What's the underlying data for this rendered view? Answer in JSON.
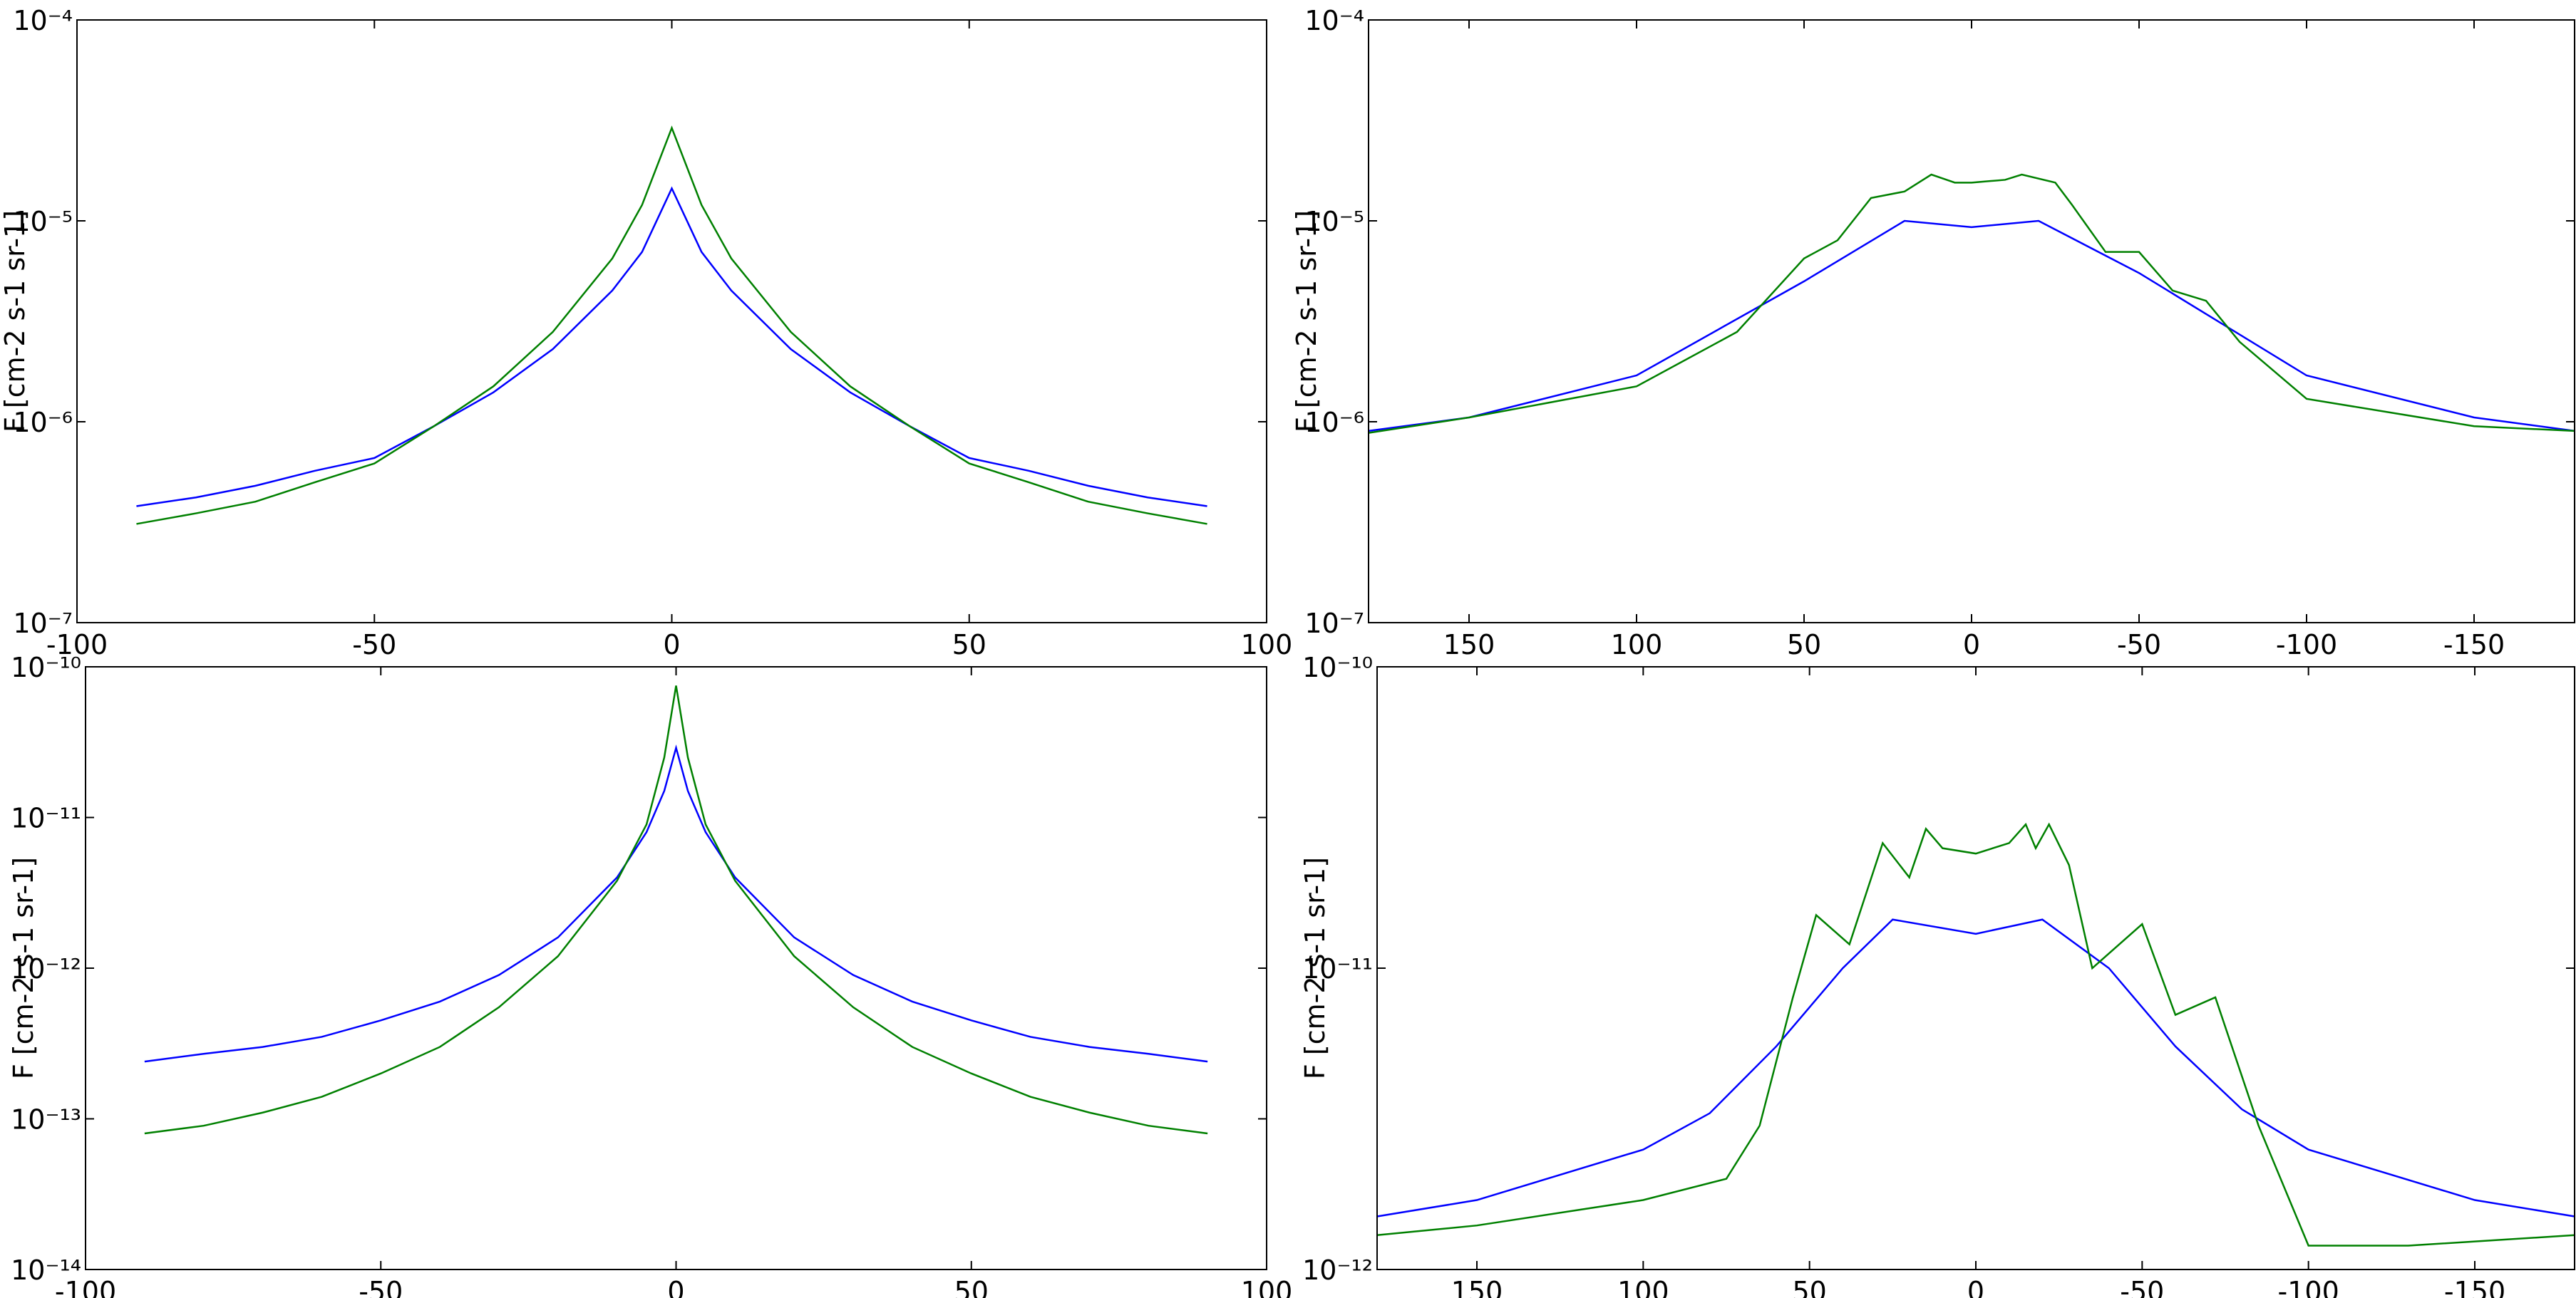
{
  "chart_data": [
    {
      "type": "line",
      "ylabel": "F [cm-2 s-1 sr-1]",
      "log_y": true,
      "xlim": [
        -100,
        100
      ],
      "ylim": [
        1e-07,
        0.0001
      ],
      "xticks": [
        -100,
        -50,
        0,
        50,
        100
      ],
      "yticks": [
        {
          "value": 1e-07,
          "label": "10⁻⁷"
        },
        {
          "value": 1e-06,
          "label": "10⁻⁶"
        },
        {
          "value": 1e-05,
          "label": "10⁻⁵"
        },
        {
          "value": 0.0001,
          "label": "10⁻⁴"
        }
      ],
      "series": [
        {
          "color": "#0000ff",
          "x": [
            -90,
            -80,
            -70,
            -60,
            -50,
            -40,
            -30,
            -20,
            -10,
            -5,
            0,
            5,
            10,
            20,
            30,
            40,
            50,
            60,
            70,
            80,
            90
          ],
          "values": [
            3.8e-07,
            4.2e-07,
            4.8e-07,
            5.7e-07,
            6.6e-07,
            9.5e-07,
            1.4e-06,
            2.3e-06,
            4.5e-06,
            7e-06,
            1.45e-05,
            7e-06,
            4.5e-06,
            2.3e-06,
            1.4e-06,
            9.5e-07,
            6.6e-07,
            5.7e-07,
            4.8e-07,
            4.2e-07,
            3.8e-07
          ]
        },
        {
          "color": "#008000",
          "x": [
            -90,
            -80,
            -70,
            -60,
            -50,
            -40,
            -30,
            -20,
            -10,
            -5,
            0,
            5,
            10,
            20,
            30,
            40,
            50,
            60,
            70,
            80,
            90
          ],
          "values": [
            3.1e-07,
            3.5e-07,
            4e-07,
            5e-07,
            6.2e-07,
            9.5e-07,
            1.5e-06,
            2.8e-06,
            6.5e-06,
            1.2e-05,
            2.9e-05,
            1.2e-05,
            6.5e-06,
            2.8e-06,
            1.5e-06,
            9.5e-07,
            6.2e-07,
            5e-07,
            4e-07,
            3.5e-07,
            3.1e-07
          ]
        }
      ]
    },
    {
      "type": "line",
      "ylabel": "F [cm-2 s-1 sr-1]",
      "log_y": true,
      "xlim": [
        180,
        -180
      ],
      "ylim": [
        1e-07,
        0.0001
      ],
      "xticks": [
        150,
        100,
        50,
        0,
        -50,
        -100,
        -150
      ],
      "yticks": [
        {
          "value": 1e-07,
          "label": "10⁻⁷"
        },
        {
          "value": 1e-06,
          "label": "10⁻⁶"
        },
        {
          "value": 1e-05,
          "label": "10⁻⁵"
        },
        {
          "value": 0.0001,
          "label": "10⁻⁴"
        }
      ],
      "series": [
        {
          "color": "#0000ff",
          "x": [
            180,
            150,
            100,
            50,
            20,
            0,
            -20,
            -50,
            -100,
            -150,
            -180
          ],
          "values": [
            9e-07,
            1.05e-06,
            1.7e-06,
            5e-06,
            1e-05,
            9.3e-06,
            1e-05,
            5.5e-06,
            1.7e-06,
            1.05e-06,
            9e-07
          ]
        },
        {
          "color": "#008000",
          "x": [
            180,
            150,
            100,
            70,
            50,
            40,
            30,
            20,
            12,
            5,
            0,
            -10,
            -15,
            -25,
            -30,
            -40,
            -50,
            -60,
            -70,
            -80,
            -100,
            -150,
            -180
          ],
          "values": [
            8.8e-07,
            1.05e-06,
            1.5e-06,
            2.8e-06,
            6.5e-06,
            8e-06,
            1.3e-05,
            1.4e-05,
            1.7e-05,
            1.55e-05,
            1.55e-05,
            1.6e-05,
            1.7e-05,
            1.55e-05,
            1.2e-05,
            7e-06,
            7e-06,
            4.5e-06,
            4e-06,
            2.5e-06,
            1.3e-06,
            9.5e-07,
            9e-07
          ]
        }
      ]
    },
    {
      "type": "line",
      "ylabel": "F [cm-2 s-1 sr-1]",
      "log_y": true,
      "xlim": [
        -100,
        100
      ],
      "ylim": [
        1e-14,
        1e-10
      ],
      "xticks": [
        -100,
        -50,
        0,
        50,
        100
      ],
      "yticks": [
        {
          "value": 1e-14,
          "label": "10⁻¹⁴"
        },
        {
          "value": 1e-13,
          "label": "10⁻¹³"
        },
        {
          "value": 1e-12,
          "label": "10⁻¹²"
        },
        {
          "value": 1e-11,
          "label": "10⁻¹¹"
        },
        {
          "value": 1e-10,
          "label": "10⁻¹⁰"
        }
      ],
      "series": [
        {
          "color": "#0000ff",
          "x": [
            -90,
            -80,
            -70,
            -60,
            -50,
            -40,
            -30,
            -20,
            -10,
            -5,
            -2,
            0,
            2,
            5,
            10,
            20,
            30,
            40,
            50,
            60,
            70,
            80,
            90
          ],
          "values": [
            2.4e-13,
            2.7e-13,
            3e-13,
            3.5e-13,
            4.5e-13,
            6e-13,
            9e-13,
            1.6e-12,
            4e-12,
            8e-12,
            1.5e-11,
            2.9e-11,
            1.5e-11,
            8e-12,
            4e-12,
            1.6e-12,
            9e-13,
            6e-13,
            4.5e-13,
            3.5e-13,
            3e-13,
            2.7e-13,
            2.4e-13
          ]
        },
        {
          "color": "#008000",
          "x": [
            -90,
            -80,
            -70,
            -60,
            -50,
            -40,
            -30,
            -20,
            -10,
            -5,
            -2,
            0,
            2,
            5,
            10,
            20,
            30,
            40,
            50,
            60,
            70,
            80,
            90
          ],
          "values": [
            8e-14,
            9e-14,
            1.1e-13,
            1.4e-13,
            2e-13,
            3e-13,
            5.5e-13,
            1.2e-12,
            3.8e-12,
            9e-12,
            2.5e-11,
            7.5e-11,
            2.5e-11,
            9e-12,
            3.8e-12,
            1.2e-12,
            5.5e-13,
            3e-13,
            2e-13,
            1.4e-13,
            1.1e-13,
            9e-14,
            8e-14
          ]
        }
      ]
    },
    {
      "type": "line",
      "ylabel": "F [cm-2 s-1 sr-1]",
      "log_y": true,
      "xlim": [
        180,
        -180
      ],
      "ylim": [
        1e-12,
        1e-10
      ],
      "xticks": [
        150,
        100,
        50,
        0,
        -50,
        -100,
        -150
      ],
      "yticks": [
        {
          "value": 1e-12,
          "label": "10⁻¹²"
        },
        {
          "value": 1e-11,
          "label": "10⁻¹¹"
        },
        {
          "value": 1e-10,
          "label": "10⁻¹⁰"
        }
      ],
      "series": [
        {
          "color": "#0000ff",
          "x": [
            180,
            150,
            100,
            80,
            60,
            40,
            25,
            0,
            -20,
            -40,
            -60,
            -80,
            -100,
            -150,
            -180
          ],
          "values": [
            1.5e-12,
            1.7e-12,
            2.5e-12,
            3.3e-12,
            5.5e-12,
            1e-11,
            1.45e-11,
            1.3e-11,
            1.45e-11,
            1e-11,
            5.5e-12,
            3.4e-12,
            2.5e-12,
            1.7e-12,
            1.5e-12
          ]
        },
        {
          "color": "#008000",
          "x": [
            180,
            150,
            100,
            75,
            65,
            55,
            48,
            38,
            28,
            20,
            15,
            10,
            0,
            -10,
            -15,
            -18,
            -22,
            -28,
            -35,
            -50,
            -60,
            -72,
            -85,
            -100,
            -130,
            -180
          ],
          "values": [
            1.3e-12,
            1.4e-12,
            1.7e-12,
            2e-12,
            3e-12,
            8e-12,
            1.5e-11,
            1.2e-11,
            2.6e-11,
            2e-11,
            2.9e-11,
            2.5e-11,
            2.4e-11,
            2.6e-11,
            3e-11,
            2.5e-11,
            3e-11,
            2.2e-11,
            1e-11,
            1.4e-11,
            7e-12,
            8e-12,
            3e-12,
            1.2e-12,
            1.2e-12,
            1.3e-12
          ]
        }
      ]
    }
  ]
}
